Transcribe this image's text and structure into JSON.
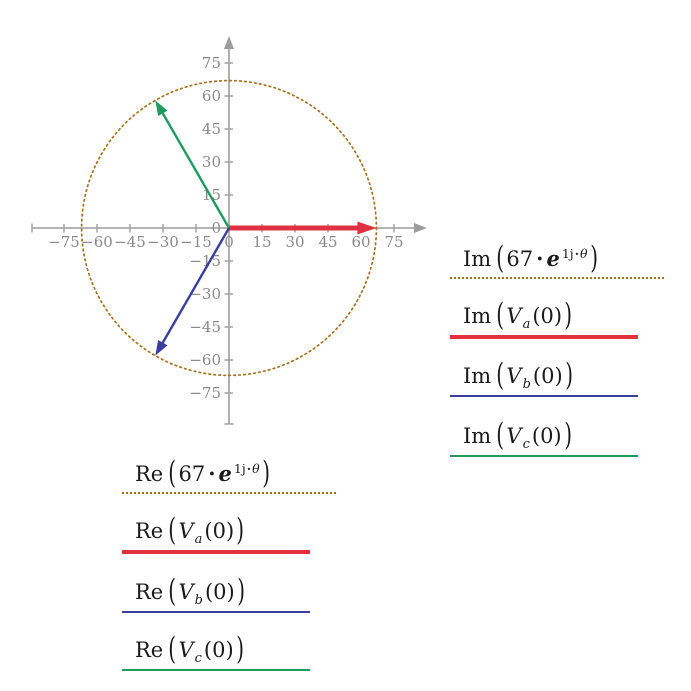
{
  "colors": {
    "background": "#ffffff",
    "axis": "#9c9c9c",
    "tick_label": "#8a8a8a",
    "text": "#1b1b1b",
    "reference_circle": "#a8701f",
    "phase_a": "#e03140",
    "phase_b": "#3a3f9e",
    "phase_c": "#1f9b60",
    "euler_e": "#7d8d2a"
  },
  "chart_data": {
    "type": "line",
    "subtype": "phasor-diagram",
    "title": "",
    "x_axis": {
      "ticks": [
        -75,
        -60,
        -45,
        -30,
        -15,
        0,
        15,
        30,
        45,
        60,
        75
      ],
      "range": [
        -90,
        90
      ],
      "expressions": [
        "Re(67·e^(1j·θ))",
        "Re(V_a(0))",
        "Re(V_b(0))",
        "Re(V_c(0))"
      ]
    },
    "y_axis": {
      "ticks": [
        -75,
        -60,
        -45,
        -30,
        -15,
        0,
        15,
        30,
        45,
        60,
        75
      ],
      "range": [
        -90,
        87
      ],
      "expressions": [
        "Im(67·e^(1j·θ))",
        "Im(V_a(0))",
        "Im(V_b(0))",
        "Im(V_c(0))"
      ]
    },
    "grid": false,
    "reference_circle": {
      "expression": "67·e^(1j·θ)",
      "radius": 67,
      "style": "dotted",
      "color": "#a8701f"
    },
    "series": [
      {
        "name": "V_a(0)",
        "magnitude": 67,
        "angle_deg": 0,
        "re": 67,
        "im": 0,
        "color": "#e03140",
        "stroke_width": 5
      },
      {
        "name": "V_b(0)",
        "magnitude": 67,
        "angle_deg": -120,
        "re": -33.5,
        "im": -58.02,
        "color": "#3a3f9e",
        "stroke_width": 2.4
      },
      {
        "name": "V_c(0)",
        "magnitude": 67,
        "angle_deg": 120,
        "re": -33.5,
        "im": 58.02,
        "color": "#1f9b60",
        "stroke_width": 2.4
      }
    ]
  },
  "legend_right": {
    "rows": [
      {
        "func": "Im",
        "value": "67",
        "times": "·",
        "base": "e",
        "exp_num": "1j",
        "exp_dot": "·",
        "exp_var": "θ",
        "line": {
          "style": "dotted",
          "color": "#a8701f",
          "width": 2
        }
      },
      {
        "func": "Im",
        "var": "V",
        "sub": "a",
        "arg": "(0)",
        "line": {
          "style": "solid",
          "color": "#e03140",
          "width": 4
        }
      },
      {
        "func": "Im",
        "var": "V",
        "sub": "b",
        "arg": "(0)",
        "line": {
          "style": "solid",
          "color": "#3a3f9e",
          "width": 2
        }
      },
      {
        "func": "Im",
        "var": "V",
        "sub": "c",
        "arg": "(0)",
        "line": {
          "style": "solid",
          "color": "#1f9b60",
          "width": 2
        }
      }
    ]
  },
  "legend_bottom": {
    "rows": [
      {
        "func": "Re",
        "value": "67",
        "times": "·",
        "base": "e",
        "exp_num": "1j",
        "exp_dot": "·",
        "exp_var": "θ",
        "line": {
          "style": "dotted",
          "color": "#a8701f",
          "width": 2
        }
      },
      {
        "func": "Re",
        "var": "V",
        "sub": "a",
        "arg": "(0)",
        "line": {
          "style": "solid",
          "color": "#e03140",
          "width": 4
        }
      },
      {
        "func": "Re",
        "var": "V",
        "sub": "b",
        "arg": "(0)",
        "line": {
          "style": "solid",
          "color": "#3a3f9e",
          "width": 2
        }
      },
      {
        "func": "Re",
        "var": "V",
        "sub": "c",
        "arg": "(0)",
        "line": {
          "style": "solid",
          "color": "#1f9b60",
          "width": 2
        }
      }
    ]
  }
}
